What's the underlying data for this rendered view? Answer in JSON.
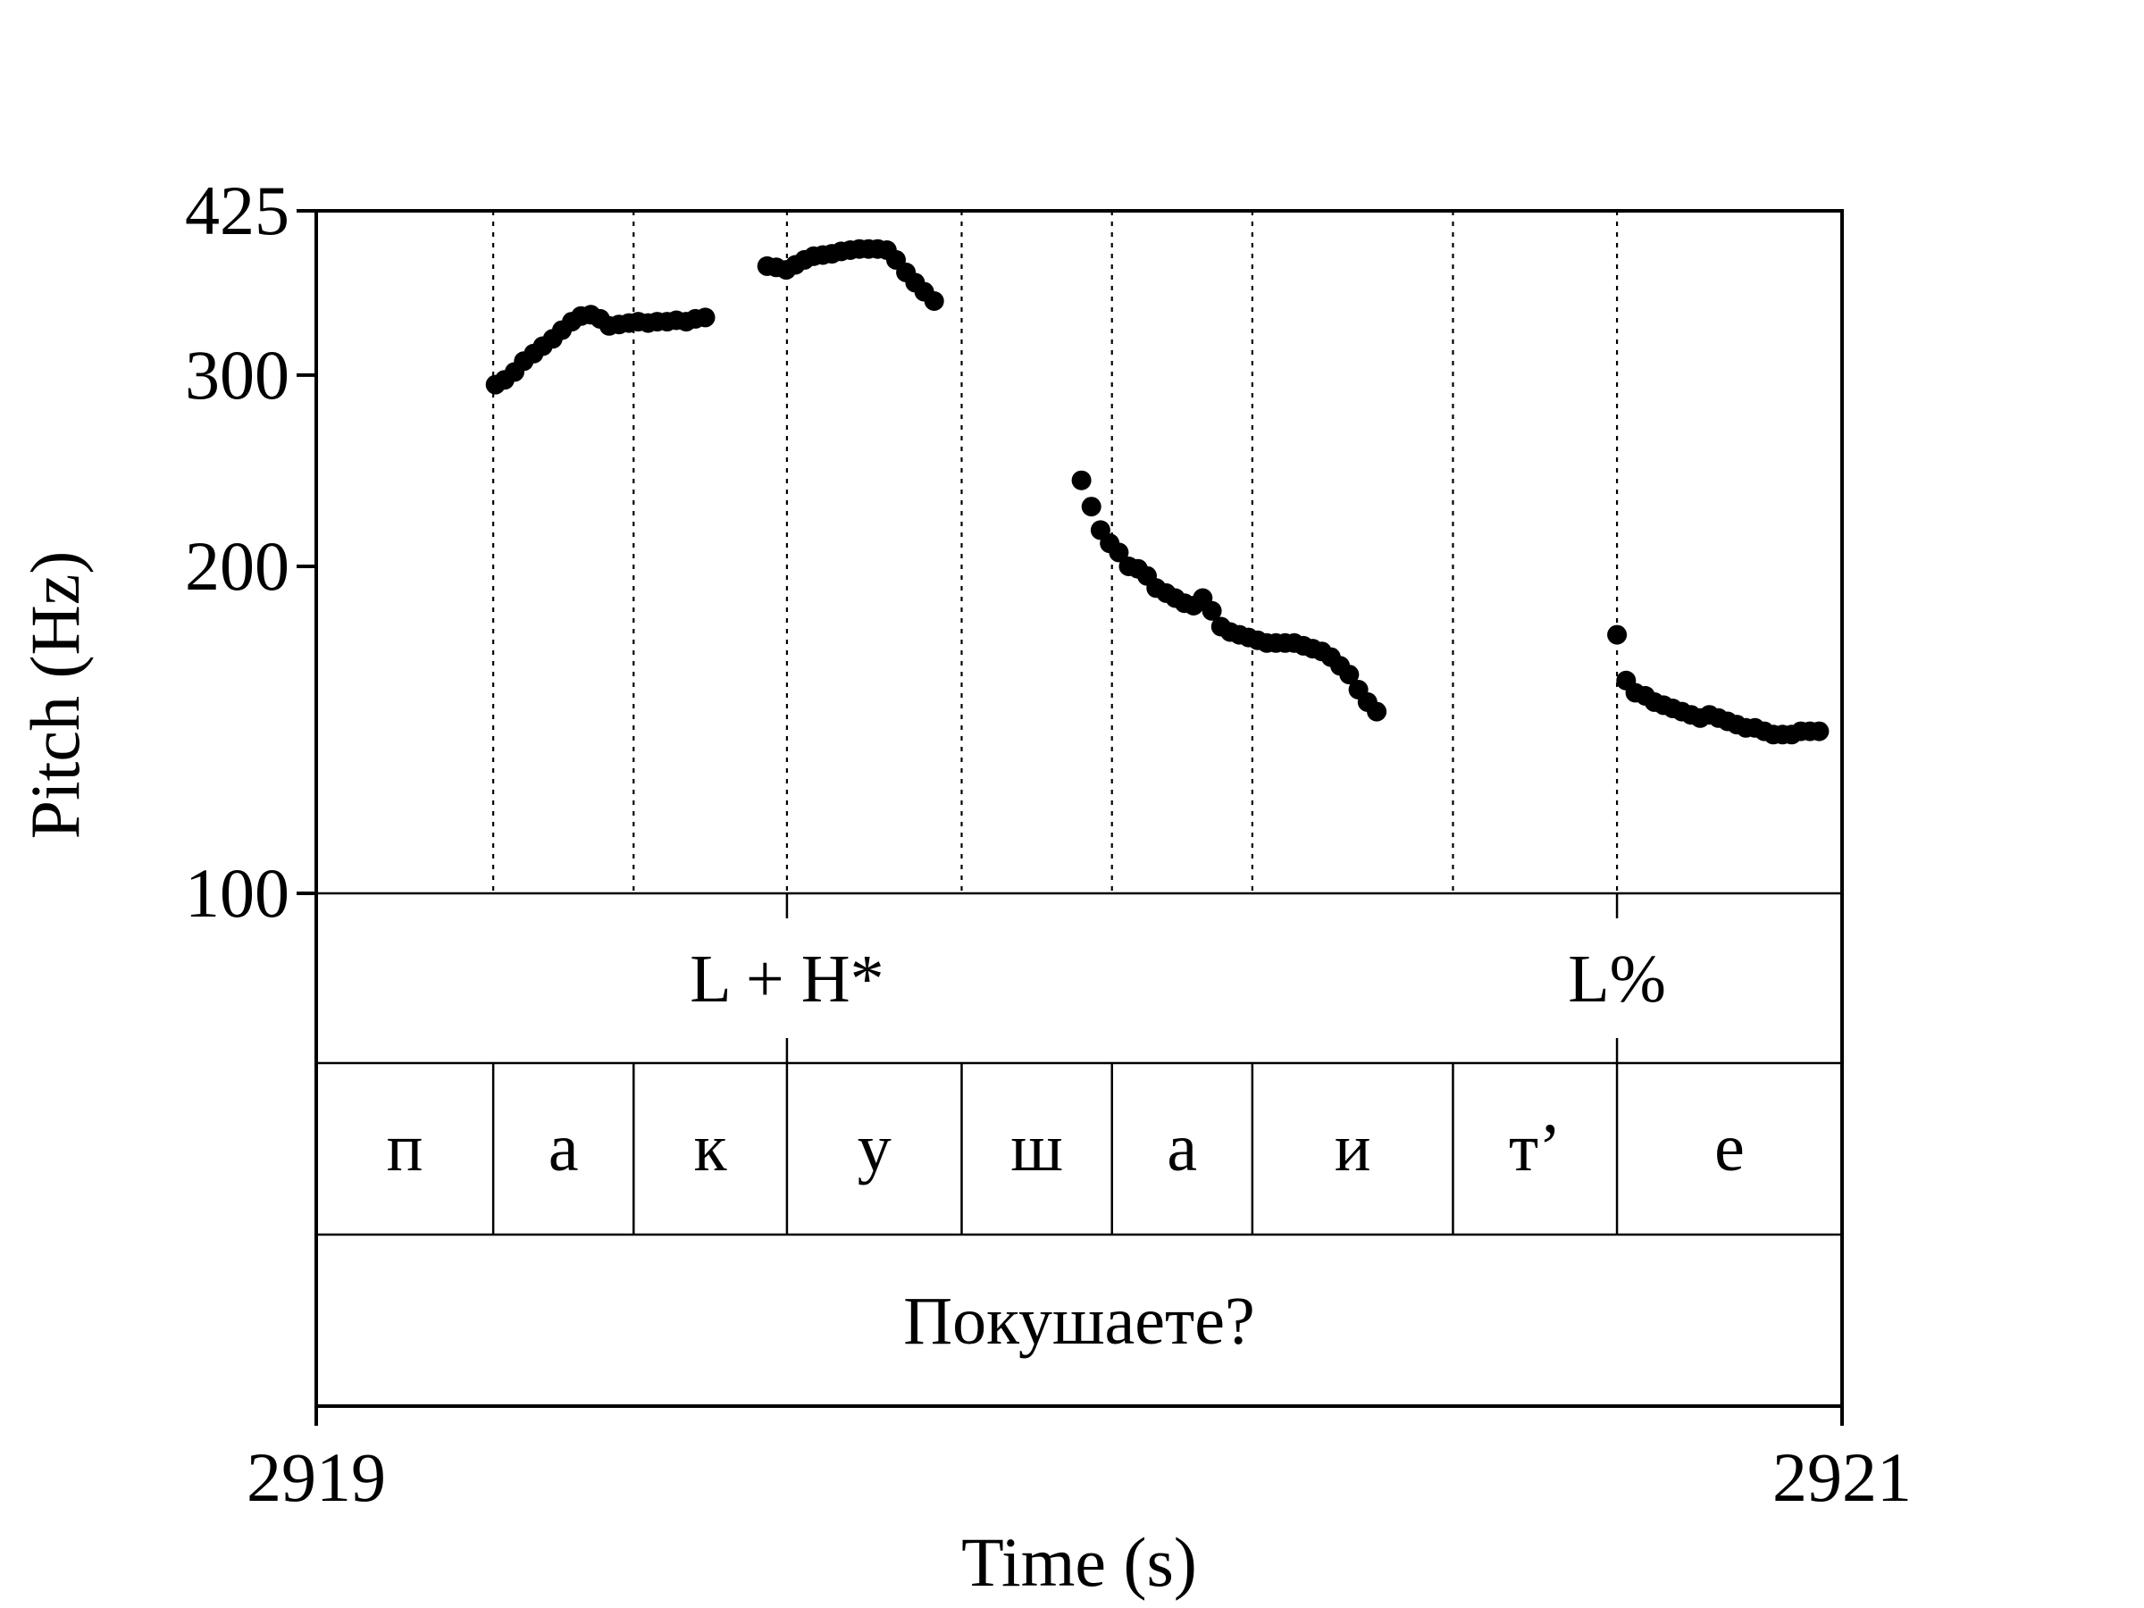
{
  "chart_data": {
    "type": "scatter",
    "title": "",
    "xlabel": "Time (s)",
    "ylabel": "Pitch (Hz)",
    "xlim": [
      2919,
      2921
    ],
    "ylim": [
      100,
      425
    ],
    "x_ticks": [
      "2919",
      "2921"
    ],
    "y_ticks": [
      "425",
      "300",
      "200",
      "100"
    ],
    "grid": false,
    "tones": [
      {
        "time": 2919.617,
        "label": "L + H*"
      },
      {
        "time": 2920.705,
        "label": "L%"
      }
    ],
    "segments": [
      {
        "start": 2919.0,
        "end": 2919.232,
        "label": "п"
      },
      {
        "start": 2919.232,
        "end": 2919.416,
        "label": "а"
      },
      {
        "start": 2919.416,
        "end": 2919.617,
        "label": "к"
      },
      {
        "start": 2919.617,
        "end": 2919.846,
        "label": "у"
      },
      {
        "start": 2919.846,
        "end": 2920.043,
        "label": "ш"
      },
      {
        "start": 2920.043,
        "end": 2920.227,
        "label": "а"
      },
      {
        "start": 2920.227,
        "end": 2920.49,
        "label": "и"
      },
      {
        "start": 2920.49,
        "end": 2920.705,
        "label": "т’"
      },
      {
        "start": 2920.705,
        "end": 2921.0,
        "label": "е"
      }
    ],
    "utterance": "Покушаете?",
    "series": [
      {
        "points": [
          [
            2919.235,
            294
          ],
          [
            2919.247,
            297
          ],
          [
            2919.26,
            302
          ],
          [
            2919.272,
            309
          ],
          [
            2919.285,
            314
          ],
          [
            2919.297,
            319
          ],
          [
            2919.31,
            324
          ],
          [
            2919.322,
            330
          ],
          [
            2919.335,
            336
          ],
          [
            2919.347,
            340
          ],
          [
            2919.36,
            341
          ],
          [
            2919.372,
            338
          ],
          [
            2919.384,
            333
          ],
          [
            2919.397,
            334
          ],
          [
            2919.41,
            335
          ],
          [
            2919.422,
            336
          ],
          [
            2919.435,
            335
          ],
          [
            2919.447,
            336
          ],
          [
            2919.46,
            336
          ],
          [
            2919.472,
            337
          ],
          [
            2919.485,
            336
          ],
          [
            2919.497,
            338
          ],
          [
            2919.51,
            339
          ]
        ]
      },
      {
        "points": [
          [
            2919.591,
            378
          ],
          [
            2919.603,
            377
          ],
          [
            2919.616,
            375
          ],
          [
            2919.628,
            379
          ],
          [
            2919.64,
            383
          ],
          [
            2919.652,
            386
          ],
          [
            2919.664,
            387
          ],
          [
            2919.676,
            388
          ],
          [
            2919.688,
            390
          ],
          [
            2919.7,
            391
          ],
          [
            2919.712,
            392
          ],
          [
            2919.724,
            392
          ],
          [
            2919.736,
            392
          ],
          [
            2919.748,
            391
          ],
          [
            2919.76,
            383
          ],
          [
            2919.773,
            373
          ],
          [
            2919.785,
            365
          ],
          [
            2919.797,
            358
          ],
          [
            2919.81,
            351
          ]
        ]
      },
      {
        "points": [
          [
            2920.003,
            240
          ],
          [
            2920.016,
            227
          ],
          [
            2920.028,
            216
          ],
          [
            2920.04,
            210
          ],
          [
            2920.052,
            206
          ],
          [
            2920.065,
            200
          ],
          [
            2920.077,
            199
          ],
          [
            2920.089,
            196
          ],
          [
            2920.101,
            191
          ],
          [
            2920.114,
            189
          ],
          [
            2920.126,
            187
          ],
          [
            2920.138,
            185
          ],
          [
            2920.15,
            184
          ],
          [
            2920.162,
            187
          ],
          [
            2920.174,
            182
          ],
          [
            2920.186,
            176
          ],
          [
            2920.198,
            174
          ],
          [
            2920.21,
            173
          ],
          [
            2920.222,
            172
          ],
          [
            2920.234,
            171
          ],
          [
            2920.246,
            170
          ],
          [
            2920.258,
            170
          ],
          [
            2920.27,
            170
          ],
          [
            2920.282,
            170
          ],
          [
            2920.294,
            169
          ],
          [
            2920.306,
            168
          ],
          [
            2920.318,
            167
          ],
          [
            2920.33,
            165
          ],
          [
            2920.342,
            162
          ],
          [
            2920.354,
            159
          ],
          [
            2920.366,
            154
          ],
          [
            2920.378,
            150
          ],
          [
            2920.39,
            147
          ]
        ]
      },
      {
        "points": [
          [
            2920.705,
            173
          ],
          [
            2920.717,
            157
          ],
          [
            2920.729,
            153
          ],
          [
            2920.742,
            152
          ],
          [
            2920.754,
            150
          ],
          [
            2920.766,
            149
          ],
          [
            2920.778,
            148
          ],
          [
            2920.79,
            147
          ],
          [
            2920.802,
            146
          ],
          [
            2920.814,
            145
          ],
          [
            2920.826,
            146
          ],
          [
            2920.838,
            145
          ],
          [
            2920.85,
            144
          ],
          [
            2920.862,
            143
          ],
          [
            2920.874,
            142
          ],
          [
            2920.886,
            142
          ],
          [
            2920.898,
            141
          ],
          [
            2920.91,
            140
          ],
          [
            2920.922,
            140
          ],
          [
            2920.934,
            140
          ],
          [
            2920.946,
            141
          ],
          [
            2920.958,
            141
          ],
          [
            2920.97,
            141
          ]
        ]
      }
    ]
  }
}
